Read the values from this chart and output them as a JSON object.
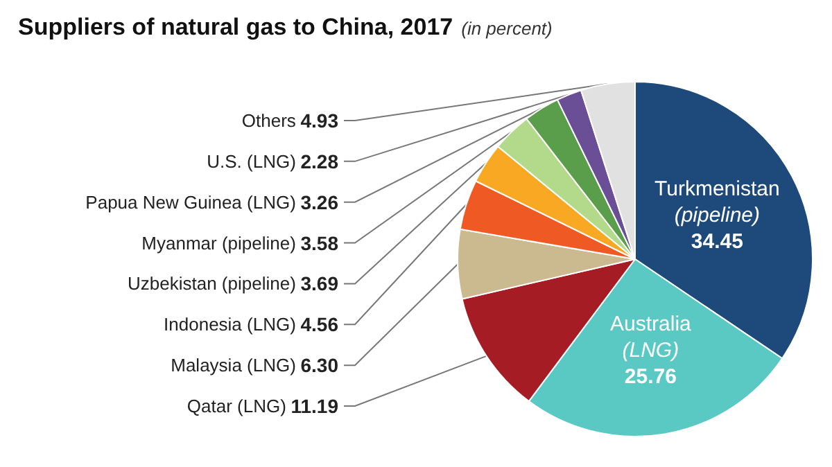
{
  "chart_data": {
    "type": "pie",
    "title": "Suppliers of natural gas to China, 2017",
    "subtitle": "(in percent)",
    "categories": [
      "Turkmenistan (pipeline)",
      "Australia (LNG)",
      "Qatar (LNG)",
      "Malaysia (LNG)",
      "Indonesia (LNG)",
      "Uzbekistan (pipeline)",
      "Myanmar (pipeline)",
      "Papua New Guinea (LNG)",
      "U.S. (LNG)",
      "Others"
    ],
    "values": [
      34.45,
      25.76,
      11.19,
      6.3,
      4.56,
      3.69,
      3.58,
      3.26,
      2.28,
      4.93
    ],
    "colors": [
      "#1d4a7a",
      "#5ac8c3",
      "#a51c24",
      "#cbb990",
      "#ef5a24",
      "#f8a823",
      "#b3d98a",
      "#5a9e4b",
      "#6b4f96",
      "#e1e1e1"
    ],
    "value_labels": [
      "34.45",
      "25.76",
      "11.19",
      "6.30",
      "4.56",
      "3.69",
      "3.58",
      "3.26",
      "2.28",
      "4.93"
    ],
    "legend": false
  }
}
